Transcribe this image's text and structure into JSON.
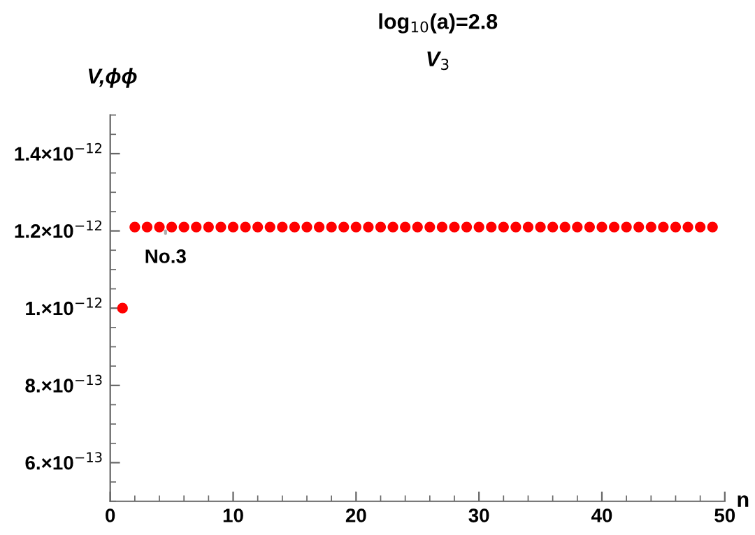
{
  "chart_data": {
    "type": "scatter",
    "title": "log$_{10}$(a)=2.8",
    "subtitle": "V$_{3}$",
    "xlabel": "n",
    "ylabel": "V,ϕϕ",
    "x": [
      1,
      2,
      3,
      4,
      5,
      6,
      7,
      8,
      9,
      10,
      11,
      12,
      13,
      14,
      15,
      16,
      17,
      18,
      19,
      20,
      21,
      22,
      23,
      24,
      25,
      26,
      27,
      28,
      29,
      30,
      31,
      32,
      33,
      34,
      35,
      36,
      37,
      38,
      39,
      40,
      41,
      42,
      43,
      44,
      45,
      46,
      47,
      48,
      49
    ],
    "series": [
      {
        "color": "#ff0000",
        "values": [
          1e-12,
          1.21e-12,
          1.21e-12,
          1.21e-12,
          1.21e-12,
          1.21e-12,
          1.21e-12,
          1.21e-12,
          1.21e-12,
          1.21e-12,
          1.21e-12,
          1.21e-12,
          1.21e-12,
          1.21e-12,
          1.21e-12,
          1.21e-12,
          1.21e-12,
          1.21e-12,
          1.21e-12,
          1.21e-12,
          1.21e-12,
          1.21e-12,
          1.21e-12,
          1.21e-12,
          1.21e-12,
          1.21e-12,
          1.21e-12,
          1.21e-12,
          1.21e-12,
          1.21e-12,
          1.21e-12,
          1.21e-12,
          1.21e-12,
          1.21e-12,
          1.21e-12,
          1.21e-12,
          1.21e-12,
          1.21e-12,
          1.21e-12,
          1.21e-12,
          1.21e-12,
          1.21e-12,
          1.21e-12,
          1.21e-12,
          1.21e-12,
          1.21e-12,
          1.21e-12,
          1.21e-12,
          1.21e-12
        ]
      }
    ],
    "annotations": [
      "No.3"
    ],
    "xlim": [
      0,
      50
    ],
    "xticks": [
      0,
      10,
      20,
      30,
      40,
      50
    ],
    "ylim": [
      5e-13,
      1.5e-12
    ],
    "yticks": [
      {
        "value": 6e-13,
        "label": "6.×10$^{−13}$"
      },
      {
        "value": 8e-13,
        "label": "8.×10$^{−13}$"
      },
      {
        "value": 1e-12,
        "label": "1.×10$^{−12}$"
      },
      {
        "value": 1.2e-12,
        "label": "1.2×10$^{−12}$"
      },
      {
        "value": 1.4e-12,
        "label": "1.4×10$^{−12}$"
      }
    ],
    "marker": "circle",
    "grid": false,
    "legend": false
  }
}
